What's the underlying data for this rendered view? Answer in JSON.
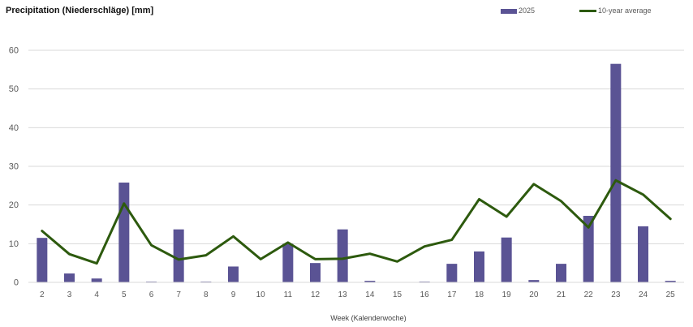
{
  "chart_data": {
    "type": "bar",
    "title": "Precipitation (Niederschläge) [mm]",
    "xlabel": "Week (Kalenderwoche)",
    "ylabel": "",
    "ylim": [
      0,
      60
    ],
    "yticks": [
      0,
      10,
      20,
      30,
      40,
      50,
      60
    ],
    "grid": true,
    "legend_position": "top-right",
    "categories": [
      "2",
      "3",
      "4",
      "5",
      "6",
      "7",
      "8",
      "9",
      "10",
      "11",
      "12",
      "13",
      "14",
      "15",
      "16",
      "17",
      "18",
      "19",
      "20",
      "21",
      "22",
      "23",
      "24",
      "25"
    ],
    "series": [
      {
        "name": "2025",
        "type": "bar",
        "color": "#5a5394",
        "values": [
          11.5,
          2.3,
          1.0,
          25.8,
          0.2,
          13.7,
          0.2,
          4.1,
          0.0,
          10.0,
          5.0,
          13.7,
          0.4,
          0.0,
          0.2,
          4.8,
          8.0,
          11.6,
          0.6,
          4.8,
          17.2,
          56.5,
          14.5,
          0.4
        ]
      },
      {
        "name": "10-year average",
        "type": "line",
        "color": "#2d5a0e",
        "values": [
          13.3,
          7.3,
          4.9,
          20.4,
          9.6,
          5.9,
          7.0,
          11.9,
          6.0,
          10.3,
          6.0,
          6.1,
          7.4,
          5.4,
          9.3,
          11.0,
          21.5,
          17.0,
          25.4,
          21.0,
          14.2,
          26.4,
          22.7,
          16.4
        ]
      }
    ]
  }
}
